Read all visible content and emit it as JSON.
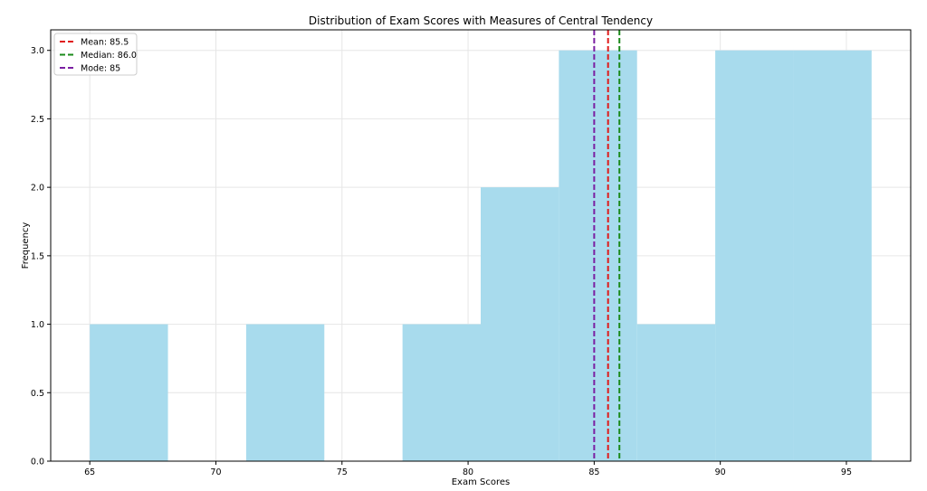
{
  "chart_data": {
    "type": "bar",
    "title": "Distribution of Exam Scores with Measures of Central Tendency",
    "xlabel": "Exam Scores",
    "ylabel": "Frequency",
    "xlim": [
      63.45,
      97.55
    ],
    "ylim": [
      0,
      3.15
    ],
    "grid": true,
    "x_ticks": [
      65,
      70,
      75,
      80,
      85,
      90,
      95
    ],
    "x_tick_labels": [
      "65",
      "70",
      "75",
      "80",
      "85",
      "90",
      "95"
    ],
    "y_ticks": [
      0.0,
      0.5,
      1.0,
      1.5,
      2.0,
      2.5,
      3.0
    ],
    "y_tick_labels": [
      "0.0",
      "0.5",
      "1.0",
      "1.5",
      "2.0",
      "2.5",
      "3.0"
    ],
    "bar_color": "#a8dbed",
    "bins": [
      {
        "x0": 65.0,
        "x1": 68.1,
        "count": 1
      },
      {
        "x0": 68.1,
        "x1": 71.2,
        "count": 0
      },
      {
        "x0": 71.2,
        "x1": 74.3,
        "count": 1
      },
      {
        "x0": 74.3,
        "x1": 77.4,
        "count": 0
      },
      {
        "x0": 77.4,
        "x1": 80.5,
        "count": 1
      },
      {
        "x0": 80.5,
        "x1": 83.6,
        "count": 2
      },
      {
        "x0": 83.6,
        "x1": 86.7,
        "count": 3
      },
      {
        "x0": 86.7,
        "x1": 89.8,
        "count": 1
      },
      {
        "x0": 89.8,
        "x1": 92.9,
        "count": 3
      },
      {
        "x0": 92.9,
        "x1": 96.0,
        "count": 3
      }
    ],
    "reference_lines": [
      {
        "name": "Mean: 85.5",
        "x": 85.55,
        "color": "#e01b1b"
      },
      {
        "name": "Median: 86.0",
        "x": 86.0,
        "color": "#1a8a1a"
      },
      {
        "name": "Mode: 85",
        "x": 85.0,
        "color": "#7b1fa2"
      }
    ],
    "legend_placement": "top-left"
  }
}
